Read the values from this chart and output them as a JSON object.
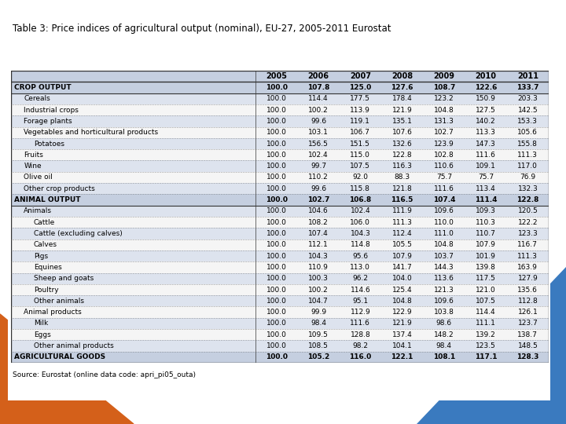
{
  "title": "Table 3: Price indices of agricultural output (nominal), EU-27, 2005-2011 Eurostat",
  "source": "Source: Eurostat (online data code: apri_pi05_outa)",
  "columns": [
    "",
    "2005",
    "2006",
    "2007",
    "2008",
    "2009",
    "2010",
    "2011"
  ],
  "rows": [
    {
      "label": "CROP OUTPUT",
      "indent": 0,
      "bold": true,
      "header_bg": true,
      "values": [
        "100.0",
        "107.8",
        "125.0",
        "127.6",
        "108.7",
        "122.6",
        "133.7"
      ]
    },
    {
      "label": "Cereals",
      "indent": 1,
      "bold": false,
      "header_bg": false,
      "values": [
        "100.0",
        "114.4",
        "177.5",
        "178.4",
        "123.2",
        "150.9",
        "203.3"
      ]
    },
    {
      "label": "Industrial crops",
      "indent": 1,
      "bold": false,
      "header_bg": false,
      "values": [
        "100.0",
        "100.2",
        "113.9",
        "121.9",
        "104.8",
        "127.5",
        "142.5"
      ]
    },
    {
      "label": "Forage plants",
      "indent": 1,
      "bold": false,
      "header_bg": false,
      "values": [
        "100.0",
        "99.6",
        "119.1",
        "135.1",
        "131.3",
        "140.2",
        "153.3"
      ]
    },
    {
      "label": "Vegetables and horticultural products",
      "indent": 1,
      "bold": false,
      "header_bg": false,
      "values": [
        "100.0",
        "103.1",
        "106.7",
        "107.6",
        "102.7",
        "113.3",
        "105.6"
      ]
    },
    {
      "label": "Potatoes",
      "indent": 2,
      "bold": false,
      "header_bg": false,
      "values": [
        "100.0",
        "156.5",
        "151.5",
        "132.6",
        "123.9",
        "147.3",
        "155.8"
      ]
    },
    {
      "label": "Fruits",
      "indent": 1,
      "bold": false,
      "header_bg": false,
      "values": [
        "100.0",
        "102.4",
        "115.0",
        "122.8",
        "102.8",
        "111.6",
        "111.3"
      ]
    },
    {
      "label": "Wine",
      "indent": 1,
      "bold": false,
      "header_bg": false,
      "values": [
        "100.0",
        "99.7",
        "107.5",
        "116.3",
        "110.6",
        "109.1",
        "117.0"
      ]
    },
    {
      "label": "Olive oil",
      "indent": 1,
      "bold": false,
      "header_bg": false,
      "values": [
        "100.0",
        "110.2",
        "92.0",
        "88.3",
        "75.7",
        "75.7",
        "76.9"
      ]
    },
    {
      "label": "Other crop products",
      "indent": 1,
      "bold": false,
      "header_bg": false,
      "values": [
        "100.0",
        "99.6",
        "115.8",
        "121.8",
        "111.6",
        "113.4",
        "132.3"
      ]
    },
    {
      "label": "ANIMAL OUTPUT",
      "indent": 0,
      "bold": true,
      "header_bg": true,
      "values": [
        "100.0",
        "102.7",
        "106.8",
        "116.5",
        "107.4",
        "111.4",
        "122.8"
      ]
    },
    {
      "label": "Animals",
      "indent": 1,
      "bold": false,
      "header_bg": false,
      "values": [
        "100.0",
        "104.6",
        "102.4",
        "111.9",
        "109.6",
        "109.3",
        "120.5"
      ]
    },
    {
      "label": "Cattle",
      "indent": 2,
      "bold": false,
      "header_bg": false,
      "values": [
        "100.0",
        "108.2",
        "106.0",
        "111.3",
        "110.0",
        "110.3",
        "122.2"
      ]
    },
    {
      "label": "Cattle (excluding calves)",
      "indent": 2,
      "bold": false,
      "header_bg": false,
      "values": [
        "100.0",
        "107.4",
        "104.3",
        "112.4",
        "111.0",
        "110.7",
        "123.3"
      ]
    },
    {
      "label": "Calves",
      "indent": 2,
      "bold": false,
      "header_bg": false,
      "values": [
        "100.0",
        "112.1",
        "114.8",
        "105.5",
        "104.8",
        "107.9",
        "116.7"
      ]
    },
    {
      "label": "Pigs",
      "indent": 2,
      "bold": false,
      "header_bg": false,
      "values": [
        "100.0",
        "104.3",
        "95.6",
        "107.9",
        "103.7",
        "101.9",
        "111.3"
      ]
    },
    {
      "label": "Equines",
      "indent": 2,
      "bold": false,
      "header_bg": false,
      "values": [
        "100.0",
        "110.9",
        "113.0",
        "141.7",
        "144.3",
        "139.8",
        "163.9"
      ]
    },
    {
      "label": "Sheep and goats",
      "indent": 2,
      "bold": false,
      "header_bg": false,
      "values": [
        "100.0",
        "100.3",
        "96.2",
        "104.0",
        "113.6",
        "117.5",
        "127.9"
      ]
    },
    {
      "label": "Poultry",
      "indent": 2,
      "bold": false,
      "header_bg": false,
      "values": [
        "100.0",
        "100.2",
        "114.6",
        "125.4",
        "121.3",
        "121.0",
        "135.6"
      ]
    },
    {
      "label": "Other animals",
      "indent": 2,
      "bold": false,
      "header_bg": false,
      "values": [
        "100.0",
        "104.7",
        "95.1",
        "104.8",
        "109.6",
        "107.5",
        "112.8"
      ]
    },
    {
      "label": "Animal products",
      "indent": 1,
      "bold": false,
      "header_bg": false,
      "values": [
        "100.0",
        "99.9",
        "112.9",
        "122.9",
        "103.8",
        "114.4",
        "126.1"
      ]
    },
    {
      "label": "Milk",
      "indent": 2,
      "bold": false,
      "header_bg": false,
      "values": [
        "100.0",
        "98.4",
        "111.6",
        "121.9",
        "98.6",
        "111.1",
        "123.7"
      ]
    },
    {
      "label": "Eggs",
      "indent": 2,
      "bold": false,
      "header_bg": false,
      "values": [
        "100.0",
        "109.5",
        "128.8",
        "137.4",
        "148.2",
        "139.2",
        "138.7"
      ]
    },
    {
      "label": "Other animal products",
      "indent": 2,
      "bold": false,
      "header_bg": false,
      "values": [
        "100.0",
        "108.5",
        "98.2",
        "104.1",
        "98.4",
        "123.5",
        "148.5"
      ]
    },
    {
      "label": "AGRICULTURAL GOODS",
      "indent": 0,
      "bold": true,
      "header_bg": true,
      "values": [
        "100.0",
        "105.2",
        "116.0",
        "122.1",
        "108.1",
        "117.1",
        "128.3"
      ]
    }
  ],
  "header_bg_color": "#c5cfe0",
  "alt_row_bg": "#dde3ee",
  "white_row_bg": "#f5f5f5",
  "border_color": "#333333",
  "text_color": "#000000",
  "title_fontsize": 8.5,
  "header_fontsize": 7.0,
  "cell_fontsize": 6.5,
  "source_fontsize": 6.5,
  "bg_left_color": "#d4601a",
  "bg_right_color": "#3a7abf",
  "fig_width": 7.2,
  "fig_height": 5.4,
  "fig_dpi": 100
}
